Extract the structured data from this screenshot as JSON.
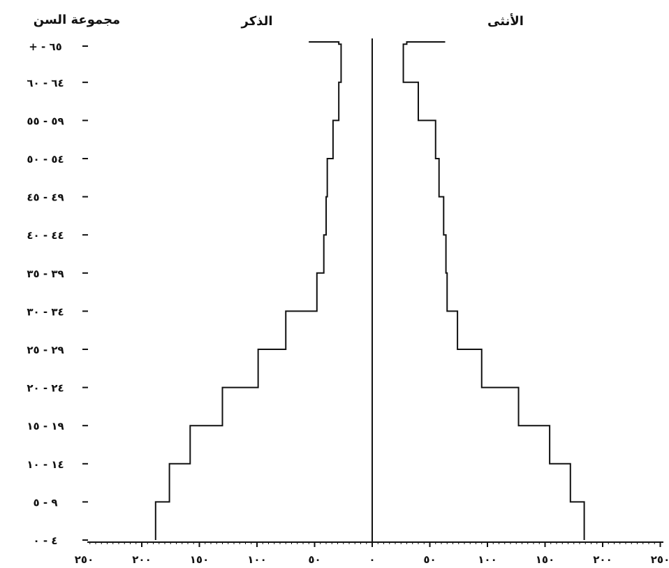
{
  "chart_data": {
    "type": "population-pyramid",
    "title": "",
    "header_age": "مجموعة السن",
    "header_male": "الذكر",
    "header_female": "الأنثى",
    "age_groups": [
      {
        "low": "٠",
        "high": "٤"
      },
      {
        "low": "٥",
        "high": "٩"
      },
      {
        "low": "١٠",
        "high": "١٤"
      },
      {
        "low": "١٥",
        "high": "١٩"
      },
      {
        "low": "٢٠",
        "high": "٢٤"
      },
      {
        "low": "٢٥",
        "high": "٢٩"
      },
      {
        "low": "٣٠",
        "high": "٣٤"
      },
      {
        "low": "٣٥",
        "high": "٣٩"
      },
      {
        "low": "٤٠",
        "high": "٤٤"
      },
      {
        "low": "٤٥",
        "high": "٤٩"
      },
      {
        "low": "٥٠",
        "high": "٥٤"
      },
      {
        "low": "٥٥",
        "high": "٥٩"
      },
      {
        "low": "٦٠",
        "high": "٦٤"
      },
      {
        "low": "٦٥",
        "high": "+"
      }
    ],
    "series": [
      {
        "side": "left",
        "values": [
          188,
          176,
          158,
          130,
          99,
          75,
          48,
          42,
          40,
          39,
          34,
          29,
          27,
          29
        ]
      },
      {
        "side": "right",
        "values": [
          184,
          172,
          154,
          127,
          95,
          74,
          65,
          64,
          62,
          58,
          55,
          40,
          27,
          30
        ]
      }
    ],
    "x_tick_labels": [
      "٢٥٠",
      "٢٠٠",
      "١٥٠",
      "١٠٠",
      "٥٠",
      "٠",
      "٥٠",
      "١٠٠",
      "١٥٠",
      "٢٠٠",
      "٢٥٠"
    ],
    "x_tick_values": [
      -250,
      -200,
      -150,
      -100,
      -50,
      0,
      50,
      100,
      150,
      200,
      250
    ],
    "xlim": [
      -250,
      250
    ],
    "grid": false
  }
}
